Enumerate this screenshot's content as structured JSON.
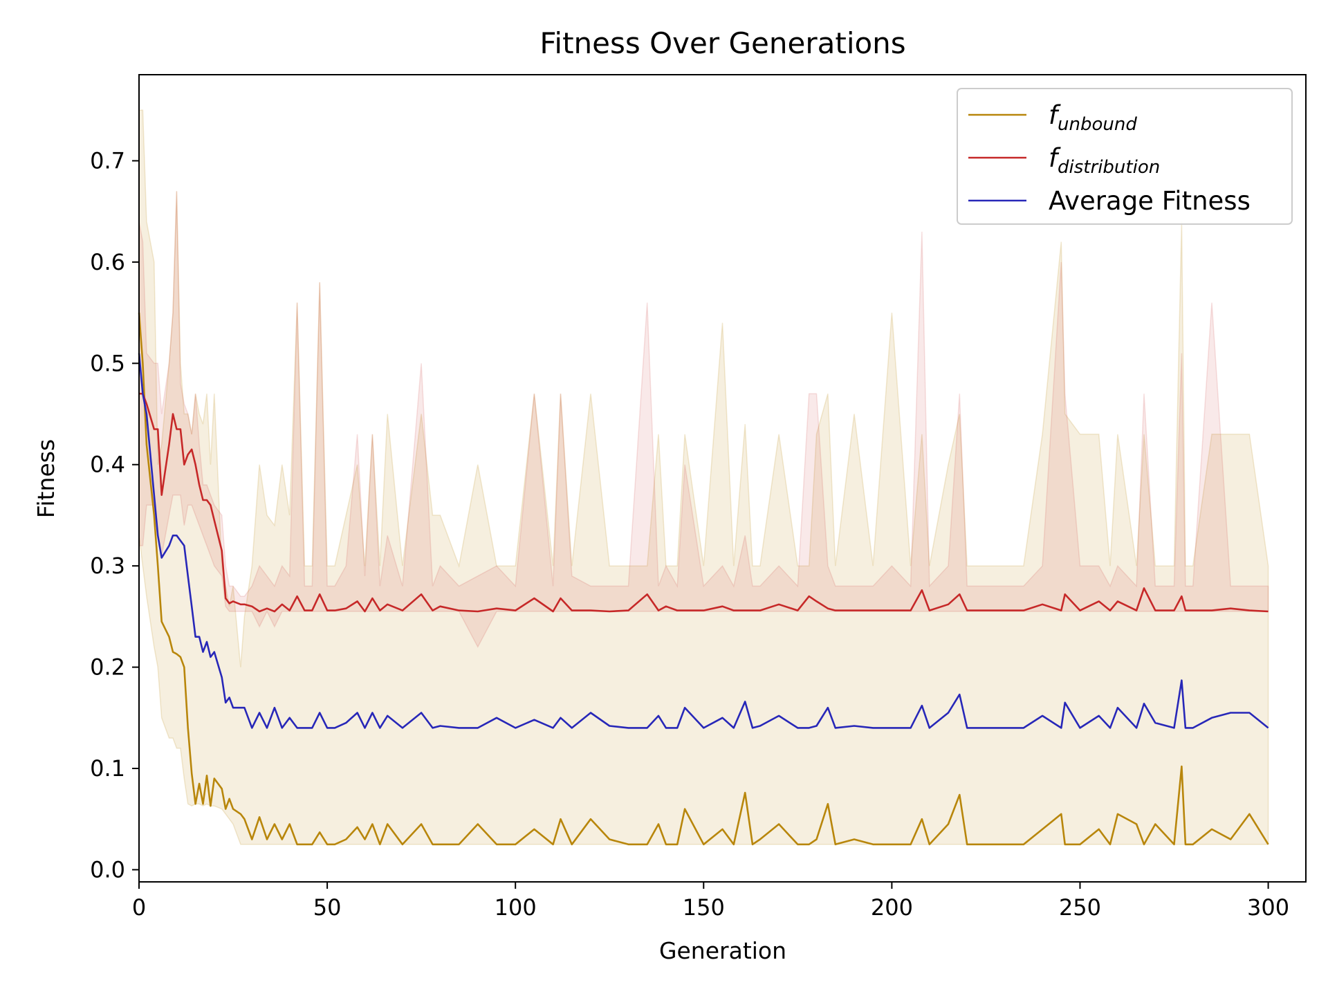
{
  "chart_data": {
    "type": "line",
    "title": "Fitness Over Generations",
    "xlabel": "Generation",
    "ylabel": "Fitness",
    "xlim": [
      0,
      310
    ],
    "ylim": [
      -0.012,
      0.785
    ],
    "xticks": [
      0,
      50,
      100,
      150,
      200,
      250,
      300
    ],
    "yticks": [
      0.0,
      0.1,
      0.2,
      0.3,
      0.4,
      0.5,
      0.6,
      0.7
    ],
    "xtick_labels": [
      "0",
      "50",
      "100",
      "150",
      "200",
      "250",
      "300"
    ],
    "ytick_labels": [
      "0.0",
      "0.1",
      "0.2",
      "0.3",
      "0.4",
      "0.5",
      "0.6",
      "0.7"
    ],
    "grid": false,
    "legend_position": "top-right",
    "x": [
      0,
      1,
      2,
      4,
      5,
      6,
      8,
      9,
      10,
      11,
      12,
      13,
      14,
      15,
      16,
      17,
      18,
      19,
      20,
      22,
      23,
      24,
      25,
      27,
      28,
      30,
      32,
      34,
      36,
      38,
      40,
      42,
      44,
      46,
      48,
      50,
      52,
      55,
      58,
      60,
      62,
      64,
      66,
      70,
      75,
      78,
      80,
      85,
      90,
      95,
      100,
      105,
      110,
      112,
      115,
      120,
      125,
      130,
      135,
      138,
      140,
      143,
      145,
      150,
      155,
      158,
      161,
      163,
      165,
      170,
      175,
      178,
      180,
      183,
      185,
      190,
      195,
      200,
      205,
      208,
      210,
      215,
      218,
      220,
      225,
      230,
      235,
      240,
      245,
      246,
      250,
      255,
      258,
      260,
      265,
      267,
      270,
      275,
      277,
      278,
      280,
      285,
      290,
      295,
      300
    ],
    "series": [
      {
        "name": "f_unbound",
        "legend_main": "f",
        "legend_sub": "unbound",
        "color": "#b8860b",
        "values": [
          0.55,
          0.5,
          0.42,
          0.35,
          0.3,
          0.245,
          0.23,
          0.215,
          0.213,
          0.21,
          0.2,
          0.14,
          0.095,
          0.065,
          0.085,
          0.065,
          0.093,
          0.063,
          0.09,
          0.08,
          0.06,
          0.07,
          0.06,
          0.055,
          0.05,
          0.03,
          0.052,
          0.03,
          0.045,
          0.03,
          0.045,
          0.025,
          0.025,
          0.025,
          0.037,
          0.025,
          0.025,
          0.03,
          0.042,
          0.03,
          0.045,
          0.025,
          0.045,
          0.025,
          0.045,
          0.025,
          0.025,
          0.025,
          0.045,
          0.025,
          0.025,
          0.04,
          0.025,
          0.05,
          0.025,
          0.05,
          0.03,
          0.025,
          0.025,
          0.045,
          0.025,
          0.025,
          0.06,
          0.025,
          0.04,
          0.025,
          0.076,
          0.025,
          0.03,
          0.045,
          0.025,
          0.025,
          0.03,
          0.065,
          0.025,
          0.03,
          0.025,
          0.025,
          0.025,
          0.05,
          0.025,
          0.045,
          0.074,
          0.025,
          0.025,
          0.025,
          0.025,
          0.04,
          0.055,
          0.025,
          0.025,
          0.04,
          0.025,
          0.055,
          0.045,
          0.025,
          0.045,
          0.025,
          0.102,
          0.025,
          0.025,
          0.04,
          0.03,
          0.055,
          0.025
        ]
      },
      {
        "name": "f_distribution",
        "legend_main": "f",
        "legend_sub": "distribution",
        "color": "#c62828",
        "values": [
          0.47,
          0.47,
          0.46,
          0.435,
          0.435,
          0.37,
          0.42,
          0.45,
          0.435,
          0.435,
          0.4,
          0.41,
          0.415,
          0.4,
          0.38,
          0.365,
          0.365,
          0.36,
          0.345,
          0.315,
          0.268,
          0.263,
          0.265,
          0.262,
          0.262,
          0.26,
          0.255,
          0.258,
          0.255,
          0.262,
          0.256,
          0.27,
          0.256,
          0.256,
          0.272,
          0.256,
          0.256,
          0.258,
          0.265,
          0.255,
          0.268,
          0.256,
          0.262,
          0.256,
          0.272,
          0.256,
          0.26,
          0.256,
          0.255,
          0.258,
          0.256,
          0.268,
          0.255,
          0.268,
          0.256,
          0.256,
          0.255,
          0.256,
          0.272,
          0.256,
          0.26,
          0.256,
          0.256,
          0.256,
          0.26,
          0.256,
          0.256,
          0.256,
          0.256,
          0.262,
          0.256,
          0.27,
          0.265,
          0.258,
          0.256,
          0.256,
          0.256,
          0.256,
          0.256,
          0.276,
          0.256,
          0.262,
          0.272,
          0.256,
          0.256,
          0.256,
          0.256,
          0.262,
          0.256,
          0.272,
          0.256,
          0.265,
          0.256,
          0.265,
          0.256,
          0.278,
          0.256,
          0.256,
          0.27,
          0.256,
          0.256,
          0.256,
          0.258,
          0.256,
          0.255
        ]
      },
      {
        "name": "Average Fitness",
        "legend_main": "Average Fitness",
        "legend_sub": "",
        "color": "#2727b8",
        "values": [
          0.51,
          0.47,
          0.45,
          0.37,
          0.33,
          0.308,
          0.32,
          0.33,
          0.33,
          0.325,
          0.32,
          0.29,
          0.26,
          0.23,
          0.23,
          0.215,
          0.225,
          0.21,
          0.215,
          0.19,
          0.165,
          0.17,
          0.16,
          0.16,
          0.16,
          0.14,
          0.155,
          0.14,
          0.16,
          0.14,
          0.15,
          0.14,
          0.14,
          0.14,
          0.155,
          0.14,
          0.14,
          0.145,
          0.155,
          0.14,
          0.155,
          0.14,
          0.152,
          0.14,
          0.155,
          0.14,
          0.142,
          0.14,
          0.14,
          0.15,
          0.14,
          0.148,
          0.14,
          0.15,
          0.14,
          0.155,
          0.142,
          0.14,
          0.14,
          0.152,
          0.14,
          0.14,
          0.16,
          0.14,
          0.15,
          0.14,
          0.166,
          0.14,
          0.142,
          0.152,
          0.14,
          0.14,
          0.142,
          0.16,
          0.14,
          0.142,
          0.14,
          0.14,
          0.14,
          0.162,
          0.14,
          0.155,
          0.173,
          0.14,
          0.14,
          0.14,
          0.14,
          0.152,
          0.14,
          0.165,
          0.14,
          0.152,
          0.14,
          0.16,
          0.14,
          0.164,
          0.145,
          0.14,
          0.187,
          0.14,
          0.14,
          0.15,
          0.155,
          0.155,
          0.14
        ]
      }
    ],
    "bands": [
      {
        "series": "f_unbound",
        "color": "#b8860b",
        "opacity": 0.13,
        "lower": [
          0.33,
          0.3,
          0.27,
          0.22,
          0.2,
          0.15,
          0.13,
          0.13,
          0.12,
          0.12,
          0.09,
          0.065,
          0.063,
          0.065,
          0.065,
          0.063,
          0.065,
          0.063,
          0.063,
          0.06,
          0.055,
          0.05,
          0.045,
          0.025,
          0.025,
          0.025,
          0.025,
          0.025,
          0.025,
          0.025,
          0.025,
          0.025,
          0.025,
          0.025,
          0.025,
          0.025,
          0.025,
          0.025,
          0.025,
          0.025,
          0.025,
          0.025,
          0.025,
          0.025,
          0.025,
          0.025,
          0.025,
          0.025,
          0.025,
          0.025,
          0.025,
          0.025,
          0.025,
          0.025,
          0.025,
          0.025,
          0.025,
          0.025,
          0.025,
          0.025,
          0.025,
          0.025,
          0.025,
          0.025,
          0.025,
          0.025,
          0.025,
          0.025,
          0.025,
          0.025,
          0.025,
          0.025,
          0.025,
          0.025,
          0.025,
          0.025,
          0.025,
          0.025,
          0.025,
          0.025,
          0.025,
          0.025,
          0.025,
          0.025,
          0.025,
          0.025,
          0.025,
          0.025,
          0.025,
          0.025,
          0.025,
          0.025,
          0.025,
          0.025,
          0.025,
          0.025,
          0.025,
          0.025,
          0.025,
          0.025,
          0.025,
          0.025,
          0.025,
          0.025,
          0.025
        ],
        "upper": [
          0.75,
          0.75,
          0.64,
          0.6,
          0.4,
          0.42,
          0.5,
          0.55,
          0.67,
          0.5,
          0.45,
          0.45,
          0.43,
          0.47,
          0.45,
          0.44,
          0.47,
          0.4,
          0.47,
          0.3,
          0.28,
          0.26,
          0.28,
          0.2,
          0.25,
          0.3,
          0.4,
          0.35,
          0.34,
          0.4,
          0.35,
          0.56,
          0.3,
          0.3,
          0.58,
          0.3,
          0.3,
          0.35,
          0.4,
          0.3,
          0.43,
          0.3,
          0.45,
          0.3,
          0.45,
          0.35,
          0.35,
          0.3,
          0.4,
          0.3,
          0.3,
          0.47,
          0.3,
          0.47,
          0.3,
          0.47,
          0.3,
          0.3,
          0.3,
          0.43,
          0.3,
          0.3,
          0.43,
          0.3,
          0.54,
          0.3,
          0.44,
          0.3,
          0.3,
          0.43,
          0.3,
          0.3,
          0.43,
          0.47,
          0.3,
          0.45,
          0.3,
          0.55,
          0.3,
          0.43,
          0.3,
          0.4,
          0.45,
          0.3,
          0.3,
          0.3,
          0.3,
          0.43,
          0.62,
          0.45,
          0.43,
          0.43,
          0.3,
          0.43,
          0.3,
          0.43,
          0.3,
          0.3,
          0.64,
          0.3,
          0.3,
          0.43,
          0.43,
          0.43,
          0.3
        ]
      },
      {
        "series": "f_distribution",
        "color": "#c62828",
        "opacity": 0.1,
        "lower": [
          0.32,
          0.32,
          0.36,
          0.36,
          0.33,
          0.31,
          0.35,
          0.37,
          0.37,
          0.37,
          0.34,
          0.36,
          0.36,
          0.35,
          0.34,
          0.33,
          0.32,
          0.31,
          0.3,
          0.29,
          0.26,
          0.255,
          0.255,
          0.255,
          0.255,
          0.255,
          0.24,
          0.255,
          0.24,
          0.255,
          0.255,
          0.255,
          0.255,
          0.255,
          0.255,
          0.255,
          0.255,
          0.255,
          0.255,
          0.255,
          0.255,
          0.255,
          0.255,
          0.255,
          0.255,
          0.255,
          0.255,
          0.255,
          0.22,
          0.255,
          0.255,
          0.255,
          0.255,
          0.255,
          0.255,
          0.255,
          0.255,
          0.255,
          0.255,
          0.255,
          0.255,
          0.255,
          0.255,
          0.255,
          0.255,
          0.255,
          0.255,
          0.255,
          0.255,
          0.255,
          0.255,
          0.255,
          0.255,
          0.255,
          0.255,
          0.255,
          0.255,
          0.255,
          0.255,
          0.255,
          0.255,
          0.255,
          0.255,
          0.255,
          0.255,
          0.255,
          0.255,
          0.255,
          0.255,
          0.255,
          0.255,
          0.255,
          0.255,
          0.255,
          0.255,
          0.255,
          0.255,
          0.255,
          0.255,
          0.255,
          0.255,
          0.255,
          0.255,
          0.255,
          0.255
        ],
        "upper": [
          0.64,
          0.62,
          0.51,
          0.5,
          0.5,
          0.45,
          0.5,
          0.55,
          0.67,
          0.48,
          0.46,
          0.45,
          0.43,
          0.47,
          0.42,
          0.38,
          0.38,
          0.37,
          0.36,
          0.35,
          0.3,
          0.28,
          0.28,
          0.27,
          0.27,
          0.28,
          0.3,
          0.29,
          0.28,
          0.3,
          0.29,
          0.56,
          0.28,
          0.28,
          0.58,
          0.28,
          0.28,
          0.3,
          0.43,
          0.29,
          0.43,
          0.28,
          0.33,
          0.28,
          0.5,
          0.28,
          0.3,
          0.28,
          0.29,
          0.3,
          0.28,
          0.47,
          0.28,
          0.47,
          0.29,
          0.28,
          0.28,
          0.28,
          0.56,
          0.28,
          0.3,
          0.28,
          0.4,
          0.28,
          0.3,
          0.28,
          0.33,
          0.28,
          0.28,
          0.3,
          0.28,
          0.47,
          0.47,
          0.3,
          0.28,
          0.28,
          0.28,
          0.3,
          0.28,
          0.63,
          0.28,
          0.3,
          0.47,
          0.28,
          0.28,
          0.28,
          0.28,
          0.3,
          0.6,
          0.47,
          0.3,
          0.3,
          0.28,
          0.3,
          0.28,
          0.47,
          0.28,
          0.28,
          0.51,
          0.28,
          0.28,
          0.56,
          0.28,
          0.28,
          0.28
        ]
      }
    ]
  }
}
